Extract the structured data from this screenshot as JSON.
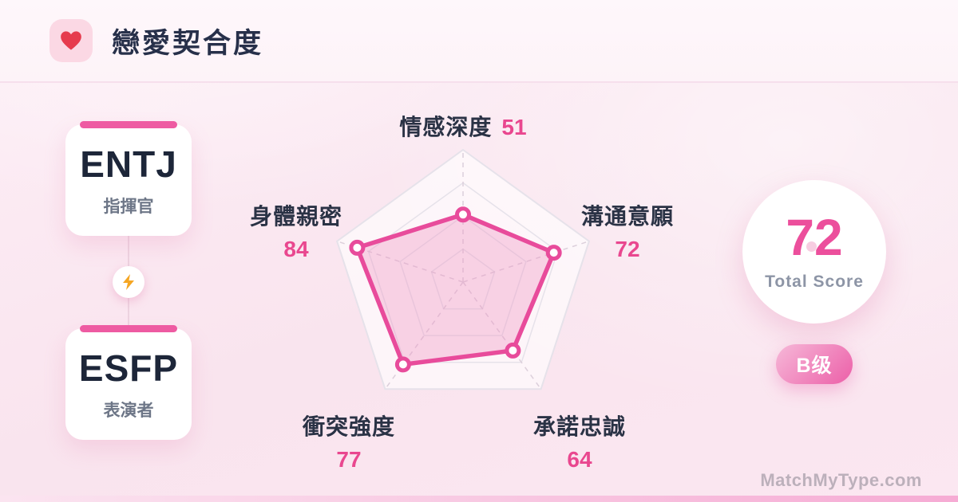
{
  "header": {
    "title": "戀愛契合度"
  },
  "pair": {
    "top": {
      "type": "ENTJ",
      "nickname": "指揮官"
    },
    "bottom": {
      "type": "ESFP",
      "nickname": "表演者"
    }
  },
  "chart_data": {
    "type": "radar",
    "title": "戀愛契合度",
    "categories": [
      "情感深度",
      "溝通意願",
      "承諾忠誠",
      "衝突強度",
      "身體親密"
    ],
    "values": [
      51,
      72,
      64,
      77,
      84
    ],
    "max": 100,
    "grid_levels": [
      25,
      50,
      75,
      100
    ],
    "legend": [],
    "axes": [
      {
        "label": "情感深度",
        "value": 51
      },
      {
        "label": "溝通意願",
        "value": 72
      },
      {
        "label": "承諾忠誠",
        "value": 64
      },
      {
        "label": "衝突強度",
        "value": 77
      },
      {
        "label": "身體親密",
        "value": 84
      }
    ],
    "accent_color": "#e84b9b",
    "fill_color": "rgba(240,150,195,0.38)",
    "grid_stroke": "#e6e2ea",
    "spoke_stroke": "#dccfdb",
    "plot_fill": "rgba(255,255,255,0.62)"
  },
  "score": {
    "total": "72",
    "label": "Total Score",
    "grade": "B级"
  },
  "watermark": "MatchMyType.com",
  "colors": {
    "accent_pink": "#e9478f",
    "title_dark": "#27304a",
    "heart_red": "#e63b4e",
    "lightning_orange": "#f5a623",
    "badge_gradient_start": "#f6b8d8",
    "badge_gradient_end": "#ec5fa8"
  }
}
